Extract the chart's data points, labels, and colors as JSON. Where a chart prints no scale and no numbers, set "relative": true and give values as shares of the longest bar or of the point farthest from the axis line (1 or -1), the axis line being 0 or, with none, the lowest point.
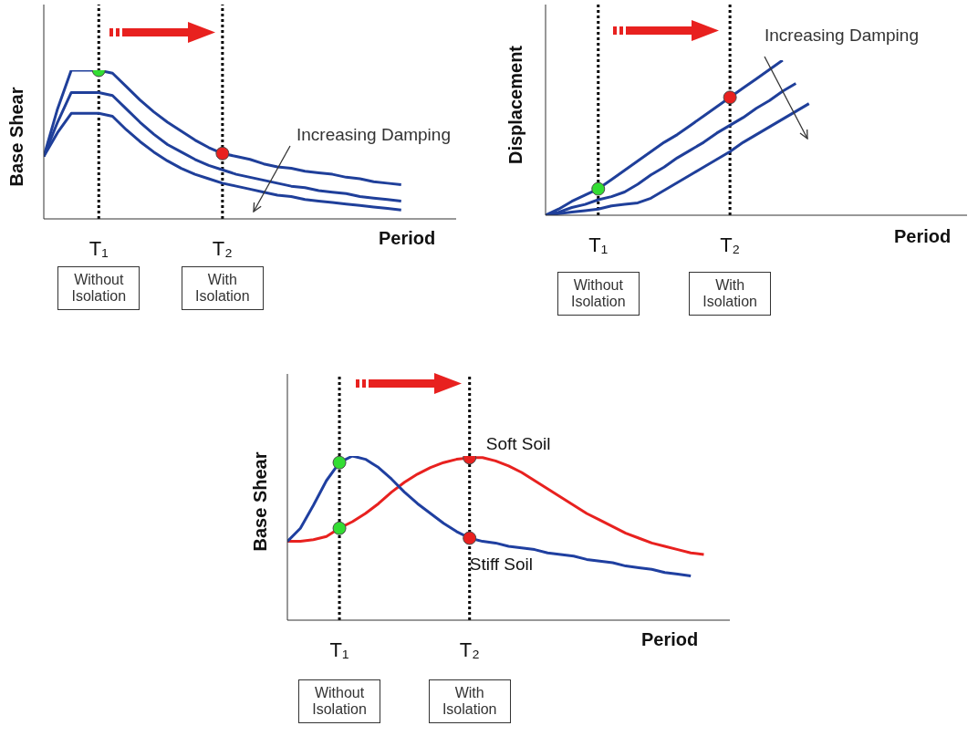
{
  "chart_data": [
    {
      "type": "line",
      "relative": true,
      "xlabel": "Period",
      "ylabel": "Base Shear",
      "marker": "none",
      "line_style": "solid",
      "categories": [
        null,
        null,
        null,
        null,
        "T₁",
        null,
        null,
        null,
        null,
        null,
        null,
        null,
        null,
        "T₂",
        null,
        null,
        null,
        null,
        null,
        null,
        null,
        null,
        null,
        null,
        null,
        null,
        null,
        null,
        null,
        null,
        null
      ],
      "series": [
        {
          "color": "#1f3f9a",
          "values": [
            0.42,
            0.74,
            1,
            1,
            1,
            0.98,
            0.89,
            0.8,
            0.72,
            0.65,
            0.59,
            0.53,
            0.48,
            0.44,
            0.42,
            0.4,
            0.37,
            0.35,
            0.34,
            0.32,
            0.31,
            0.3,
            0.28,
            0.27,
            0.25,
            0.24,
            0.23,
            null,
            null,
            null,
            null
          ]
        },
        {
          "color": "#1f3f9a",
          "values": [
            0.42,
            0.65,
            0.85,
            0.85,
            0.85,
            0.83,
            0.74,
            0.65,
            0.57,
            0.5,
            0.45,
            0.4,
            0.36,
            0.33,
            0.3,
            0.28,
            0.26,
            0.24,
            0.22,
            0.21,
            0.19,
            0.18,
            0.17,
            0.15,
            0.14,
            0.13,
            0.12,
            null,
            null,
            null,
            null
          ]
        },
        {
          "color": "#1f3f9a",
          "values": [
            0.42,
            0.58,
            0.71,
            0.71,
            0.71,
            0.69,
            0.6,
            0.52,
            0.45,
            0.39,
            0.34,
            0.3,
            0.27,
            0.24,
            0.22,
            0.2,
            0.18,
            0.16,
            0.15,
            0.13,
            0.12,
            0.11,
            0.1,
            0.09,
            0.08,
            0.07,
            0.06,
            null,
            null,
            null,
            null
          ]
        },
        {
          "type": "scatter",
          "color": "#33dd33",
          "marker": "circle",
          "x": [
            "T₁"
          ],
          "values": [
            1
          ]
        },
        {
          "type": "scatter",
          "color": "#e8211f",
          "marker": "circle",
          "x": [
            "T₂"
          ],
          "values": [
            0.44
          ]
        }
      ],
      "ref_lines": [
        {
          "axis": "x",
          "value": "T₁",
          "color": "#000000",
          "line_style": "dotted"
        },
        {
          "axis": "x",
          "value": "T₂",
          "color": "#000000",
          "line_style": "dotted"
        }
      ],
      "annotations": [
        "Without Isolation",
        "With Isolation",
        "Increasing Damping"
      ]
    },
    {
      "type": "line",
      "relative": true,
      "xlabel": "Period",
      "ylabel": "Displacement",
      "marker": "none",
      "line_style": "solid",
      "categories": [
        null,
        null,
        null,
        null,
        "T₁",
        null,
        null,
        null,
        null,
        null,
        null,
        null,
        null,
        null,
        "T₂",
        null,
        null,
        null,
        null,
        null,
        null,
        null,
        null,
        null,
        null,
        null,
        null,
        null,
        null,
        null,
        null,
        null,
        null
      ],
      "series": [
        {
          "color": "#1f3f9a",
          "values": [
            0,
            0.04,
            0.09,
            0.13,
            0.17,
            0.23,
            0.29,
            0.35,
            0.41,
            0.47,
            0.52,
            0.58,
            0.64,
            0.7,
            0.76,
            0.82,
            0.88,
            0.94,
            1,
            null,
            null,
            null,
            null,
            null,
            null,
            null,
            null,
            null,
            null,
            null,
            null,
            null,
            null
          ]
        },
        {
          "color": "#1f3f9a",
          "values": [
            0,
            0.02,
            0.05,
            0.07,
            0.1,
            0.12,
            0.15,
            0.2,
            0.26,
            0.31,
            0.37,
            0.42,
            0.47,
            0.53,
            0.58,
            0.63,
            0.69,
            0.74,
            0.8,
            0.85,
            null,
            null,
            null,
            null,
            null,
            null,
            null,
            null,
            null,
            null,
            null,
            null,
            null
          ]
        },
        {
          "color": "#1f3f9a",
          "values": [
            0,
            0.01,
            0.02,
            0.03,
            0.04,
            0.06,
            0.07,
            0.08,
            0.11,
            0.16,
            0.21,
            0.26,
            0.31,
            0.36,
            0.41,
            0.47,
            0.52,
            0.57,
            0.62,
            0.67,
            0.72,
            null,
            null,
            null,
            null,
            null,
            null,
            null,
            null,
            null,
            null,
            null,
            null
          ]
        },
        {
          "type": "scatter",
          "color": "#33dd33",
          "marker": "circle",
          "x": [
            "T₁"
          ],
          "values": [
            0.17
          ]
        },
        {
          "type": "scatter",
          "color": "#e8211f",
          "marker": "circle",
          "x": [
            "T₂"
          ],
          "values": [
            0.76
          ]
        }
      ],
      "ref_lines": [
        {
          "axis": "x",
          "value": "T₁",
          "color": "#000000",
          "line_style": "dotted"
        },
        {
          "axis": "x",
          "value": "T₂",
          "color": "#000000",
          "line_style": "dotted"
        }
      ],
      "annotations": [
        "Without Isolation",
        "With Isolation",
        "Increasing Damping"
      ]
    },
    {
      "type": "line",
      "relative": true,
      "xlabel": "Period",
      "ylabel": "Base Shear",
      "marker": "none",
      "line_style": "solid",
      "categories": [
        null,
        null,
        null,
        null,
        "T₁",
        null,
        null,
        null,
        null,
        null,
        null,
        null,
        null,
        null,
        "T₂",
        null,
        null,
        null,
        null,
        null,
        null,
        null,
        null,
        null,
        null,
        null,
        null,
        null,
        null,
        null,
        null,
        null,
        null,
        null,
        null
      ],
      "series": [
        {
          "name": "Soft Soil",
          "color": "#e8211f",
          "values": [
            0.48,
            0.48,
            0.49,
            0.51,
            0.56,
            0.6,
            0.65,
            0.71,
            0.78,
            0.84,
            0.89,
            0.93,
            0.96,
            0.98,
            0.99,
            0.99,
            0.97,
            0.94,
            0.9,
            0.85,
            0.8,
            0.75,
            0.7,
            0.65,
            0.61,
            0.57,
            0.53,
            0.5,
            0.47,
            0.45,
            0.43,
            0.41,
            0.4,
            null,
            null
          ]
        },
        {
          "name": "Stiff Soil",
          "color": "#1f3fa0",
          "values": [
            0.48,
            0.56,
            0.7,
            0.85,
            0.96,
            1,
            0.98,
            0.93,
            0.86,
            0.78,
            0.71,
            0.65,
            0.59,
            0.54,
            0.5,
            0.48,
            0.47,
            0.45,
            0.44,
            0.43,
            0.41,
            0.4,
            0.39,
            0.37,
            0.36,
            0.35,
            0.33,
            0.32,
            0.31,
            0.29,
            0.28,
            0.27,
            null,
            null,
            null
          ]
        },
        {
          "type": "scatter",
          "color": "#33dd33",
          "marker": "circle",
          "x": [
            "T₁",
            "T₁"
          ],
          "values": [
            0.96,
            0.56
          ]
        },
        {
          "type": "scatter",
          "color": "#e8211f",
          "marker": "circle",
          "x": [
            "T₂",
            "T₂"
          ],
          "values": [
            0.99,
            0.5
          ]
        }
      ],
      "ref_lines": [
        {
          "axis": "x",
          "value": "T₁",
          "color": "#000000",
          "line_style": "dotted"
        },
        {
          "axis": "x",
          "value": "T₂",
          "color": "#000000",
          "line_style": "dotted"
        }
      ],
      "annotations": [
        "Without Isolation",
        "With Isolation"
      ]
    }
  ]
}
